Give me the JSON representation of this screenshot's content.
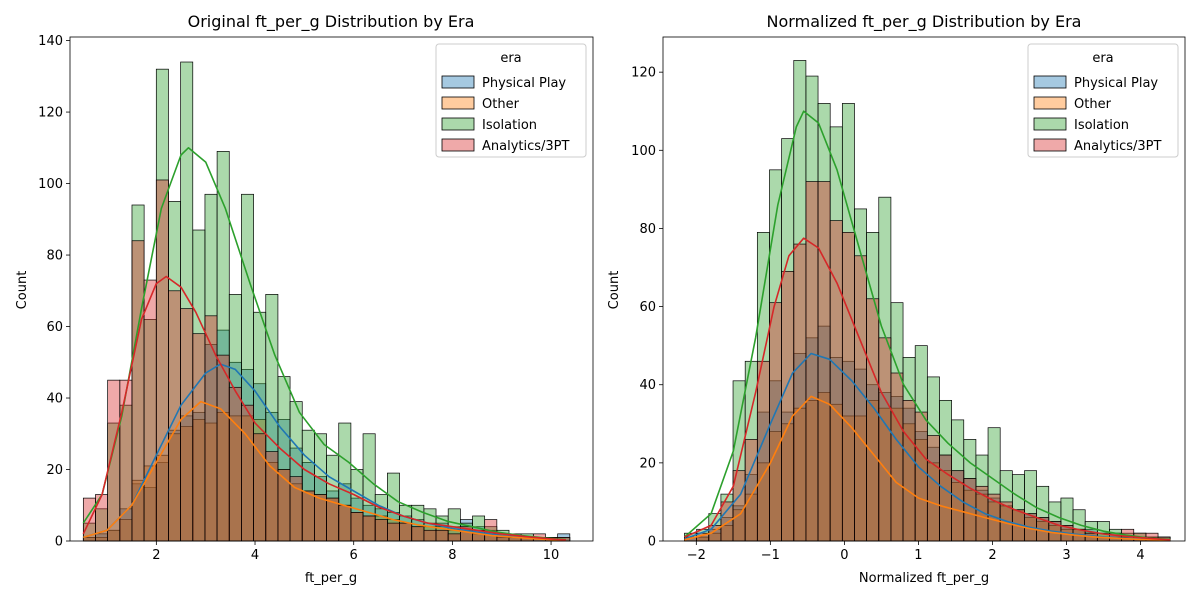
{
  "colors": {
    "Physical Play": "#1f77b4",
    "Other": "#ff7f0e",
    "Isolation": "#2ca02c",
    "Analytics/3PT": "#d62728"
  },
  "chart_data": [
    {
      "type": "histogram",
      "title": "Original ft_per_g Distribution by Era",
      "xlabel": "ft_per_g",
      "ylabel": "Count",
      "xlim": [
        0.25,
        10.85
      ],
      "ylim": [
        0,
        141
      ],
      "xticks": [
        2,
        4,
        6,
        8,
        10
      ],
      "yticks": [
        0,
        20,
        40,
        60,
        80,
        100,
        120,
        140
      ],
      "legend": {
        "title": "era",
        "placement": "top-right",
        "entries": [
          "Physical Play",
          "Other",
          "Isolation",
          "Analytics/3PT"
        ]
      },
      "bin_edges_start": 0.52,
      "bin_width": 0.2465,
      "series": [
        {
          "name": "Physical Play",
          "counts": [
            1,
            2,
            3,
            9,
            16,
            15,
            22,
            31,
            35,
            36,
            55,
            59,
            50,
            48,
            44,
            36,
            34,
            26,
            22,
            18,
            14,
            16,
            12,
            10,
            9,
            8,
            7,
            6,
            5,
            5,
            4,
            6,
            4,
            3,
            2,
            1,
            1,
            1,
            1,
            2
          ],
          "kde": [
            [
              0.52,
              1
            ],
            [
              1.0,
              3
            ],
            [
              1.5,
              10
            ],
            [
              2.0,
              24
            ],
            [
              2.5,
              38
            ],
            [
              3.0,
              47
            ],
            [
              3.3,
              49.5
            ],
            [
              3.6,
              48
            ],
            [
              4.0,
              42
            ],
            [
              4.5,
              32
            ],
            [
              5.0,
              24
            ],
            [
              5.5,
              18
            ],
            [
              6.0,
              14
            ],
            [
              6.5,
              10
            ],
            [
              7.0,
              7
            ],
            [
              7.5,
              5
            ],
            [
              8.0,
              3.5
            ],
            [
              8.5,
              2.5
            ],
            [
              9.0,
              1.5
            ],
            [
              9.5,
              1
            ],
            [
              10.0,
              0.5
            ],
            [
              10.3,
              0.3
            ]
          ]
        },
        {
          "name": "Other",
          "counts": [
            1,
            1,
            3,
            6,
            17,
            21,
            24,
            30,
            32,
            34,
            33,
            36,
            35,
            35,
            34,
            22,
            20,
            16,
            14,
            13,
            12,
            10,
            8,
            7,
            7,
            6,
            5,
            4,
            4,
            4,
            3,
            3,
            2,
            2,
            1,
            1,
            1,
            0,
            0,
            0
          ],
          "kde": [
            [
              0.52,
              1
            ],
            [
              1.0,
              3
            ],
            [
              1.5,
              10
            ],
            [
              2.0,
              22
            ],
            [
              2.5,
              34
            ],
            [
              2.9,
              39
            ],
            [
              3.3,
              37
            ],
            [
              3.8,
              30
            ],
            [
              4.3,
              21
            ],
            [
              4.8,
              15
            ],
            [
              5.3,
              12
            ],
            [
              5.8,
              10
            ],
            [
              6.3,
              8
            ],
            [
              6.8,
              6
            ],
            [
              7.3,
              4.5
            ],
            [
              7.8,
              3.5
            ],
            [
              8.3,
              2.5
            ],
            [
              8.8,
              1.5
            ],
            [
              9.3,
              1
            ],
            [
              9.8,
              0.5
            ],
            [
              10.3,
              0.2
            ]
          ]
        },
        {
          "name": "Isolation",
          "counts": [
            5,
            9,
            33,
            38,
            94,
            62,
            132,
            95,
            134,
            87,
            97,
            109,
            69,
            97,
            64,
            69,
            46,
            39,
            31,
            30,
            24,
            33,
            20,
            30,
            13,
            19,
            10,
            10,
            9,
            7,
            9,
            5,
            7,
            4,
            3,
            2,
            2,
            1,
            1,
            1
          ],
          "kde": [
            [
              0.52,
              5
            ],
            [
              0.9,
              13
            ],
            [
              1.3,
              35
            ],
            [
              1.7,
              65
            ],
            [
              2.1,
              93
            ],
            [
              2.5,
              108
            ],
            [
              2.65,
              110
            ],
            [
              3.0,
              106
            ],
            [
              3.4,
              93
            ],
            [
              3.9,
              72
            ],
            [
              4.4,
              52
            ],
            [
              4.9,
              36
            ],
            [
              5.4,
              27
            ],
            [
              5.9,
              22
            ],
            [
              6.4,
              16
            ],
            [
              6.9,
              11
            ],
            [
              7.4,
              8
            ],
            [
              7.9,
              5.5
            ],
            [
              8.4,
              4
            ],
            [
              8.9,
              2.5
            ],
            [
              9.4,
              1.5
            ],
            [
              9.9,
              0.8
            ],
            [
              10.3,
              0.4
            ]
          ]
        },
        {
          "name": "Analytics/3PT",
          "counts": [
            12,
            13,
            45,
            45,
            84,
            73,
            101,
            70,
            65,
            58,
            63,
            52,
            43,
            38,
            30,
            25,
            20,
            18,
            14,
            13,
            12,
            10,
            8,
            7,
            6,
            5,
            5,
            4,
            3,
            3,
            2,
            4,
            3,
            6,
            2,
            1,
            1,
            2,
            1,
            1
          ],
          "kde": [
            [
              0.52,
              2
            ],
            [
              0.9,
              13
            ],
            [
              1.3,
              36
            ],
            [
              1.7,
              62
            ],
            [
              2.0,
              72
            ],
            [
              2.2,
              74
            ],
            [
              2.5,
              71
            ],
            [
              2.8,
              64
            ],
            [
              3.2,
              52
            ],
            [
              3.6,
              42
            ],
            [
              4.0,
              33
            ],
            [
              4.5,
              26
            ],
            [
              5.0,
              20
            ],
            [
              5.5,
              16
            ],
            [
              6.0,
              13
            ],
            [
              6.5,
              9.5
            ],
            [
              7.0,
              7
            ],
            [
              7.5,
              5
            ],
            [
              8.0,
              4
            ],
            [
              8.5,
              3
            ],
            [
              9.0,
              2
            ],
            [
              9.5,
              1.2
            ],
            [
              10.0,
              0.6
            ],
            [
              10.3,
              0.3
            ]
          ]
        }
      ]
    },
    {
      "type": "histogram",
      "title": "Normalized ft_per_g Distribution by Era",
      "xlabel": "Normalized ft_per_g",
      "ylabel": "Count",
      "xlim": [
        -2.45,
        4.6
      ],
      "ylim": [
        0,
        129
      ],
      "xticks": [
        -2,
        -1,
        0,
        1,
        2,
        3,
        4
      ],
      "yticks": [
        0,
        20,
        40,
        60,
        80,
        100,
        120
      ],
      "legend": {
        "title": "era",
        "placement": "top-right",
        "entries": [
          "Physical Play",
          "Other",
          "Isolation",
          "Analytics/3PT"
        ]
      },
      "bin_edges_start": -2.16,
      "bin_width": 0.164,
      "series": [
        {
          "name": "Physical Play",
          "counts": [
            1,
            1,
            3,
            6,
            9,
            17,
            33,
            41,
            33,
            48,
            52,
            55,
            47,
            46,
            44,
            40,
            38,
            37,
            34,
            28,
            24,
            22,
            18,
            16,
            13,
            11,
            9,
            8,
            7,
            6,
            5,
            4,
            3,
            3,
            2,
            2,
            1,
            1,
            1,
            1
          ],
          "kde": [
            [
              -2.16,
              0.5
            ],
            [
              -1.8,
              3
            ],
            [
              -1.4,
              12
            ],
            [
              -1.0,
              30
            ],
            [
              -0.7,
              43
            ],
            [
              -0.45,
              48
            ],
            [
              -0.2,
              46.5
            ],
            [
              0.1,
              41
            ],
            [
              0.4,
              34
            ],
            [
              0.7,
              26
            ],
            [
              1.0,
              19
            ],
            [
              1.3,
              14
            ],
            [
              1.6,
              10
            ],
            [
              1.9,
              7
            ],
            [
              2.2,
              5
            ],
            [
              2.5,
              3.5
            ],
            [
              2.8,
              2.5
            ],
            [
              3.1,
              1.8
            ],
            [
              3.4,
              1.2
            ],
            [
              3.7,
              0.8
            ],
            [
              4.0,
              0.5
            ],
            [
              4.4,
              0.2
            ]
          ]
        },
        {
          "name": "Other",
          "counts": [
            0,
            1,
            2,
            4,
            8,
            12,
            20,
            28,
            30,
            34,
            36,
            38,
            35,
            32,
            32,
            36,
            34,
            34,
            30,
            26,
            20,
            18,
            15,
            13,
            12,
            10,
            9,
            8,
            6,
            5,
            4,
            3,
            3,
            2,
            2,
            1,
            1,
            1,
            0,
            0
          ],
          "kde": [
            [
              -2.16,
              0.3
            ],
            [
              -1.8,
              2
            ],
            [
              -1.4,
              7
            ],
            [
              -1.0,
              20
            ],
            [
              -0.7,
              32
            ],
            [
              -0.45,
              37
            ],
            [
              -0.2,
              35
            ],
            [
              0.1,
              29
            ],
            [
              0.4,
              22
            ],
            [
              0.7,
              15
            ],
            [
              1.0,
              11
            ],
            [
              1.3,
              9
            ],
            [
              1.6,
              7.5
            ],
            [
              1.9,
              6
            ],
            [
              2.2,
              4.5
            ],
            [
              2.5,
              3.2
            ],
            [
              2.8,
              2.2
            ],
            [
              3.1,
              1.5
            ],
            [
              3.4,
              1
            ],
            [
              3.7,
              0.7
            ],
            [
              4.0,
              0.4
            ],
            [
              4.4,
              0.2
            ]
          ]
        },
        {
          "name": "Isolation",
          "counts": [
            2,
            3,
            7,
            12,
            41,
            46,
            79,
            95,
            103,
            123,
            119,
            112,
            106,
            112,
            85,
            79,
            88,
            61,
            47,
            50,
            42,
            36,
            31,
            26,
            22,
            29,
            18,
            17,
            18,
            14,
            10,
            11,
            8,
            5,
            5,
            3,
            2,
            2,
            1,
            1
          ],
          "kde": [
            [
              -2.16,
              1
            ],
            [
              -1.8,
              7
            ],
            [
              -1.5,
              23
            ],
            [
              -1.2,
              52
            ],
            [
              -0.9,
              86
            ],
            [
              -0.65,
              106
            ],
            [
              -0.55,
              110
            ],
            [
              -0.35,
              107
            ],
            [
              -0.1,
              95
            ],
            [
              0.2,
              75
            ],
            [
              0.5,
              55
            ],
            [
              0.8,
              40
            ],
            [
              1.1,
              31
            ],
            [
              1.4,
              25
            ],
            [
              1.7,
              20
            ],
            [
              2.0,
              16
            ],
            [
              2.3,
              12
            ],
            [
              2.6,
              8.5
            ],
            [
              2.9,
              6
            ],
            [
              3.2,
              4
            ],
            [
              3.5,
              2.5
            ],
            [
              3.8,
              1.5
            ],
            [
              4.1,
              0.8
            ],
            [
              4.4,
              0.4
            ]
          ]
        },
        {
          "name": "Analytics/3PT",
          "counts": [
            1,
            2,
            4,
            10,
            18,
            26,
            46,
            61,
            69,
            76,
            92,
            92,
            82,
            79,
            73,
            62,
            52,
            43,
            36,
            33,
            27,
            22,
            18,
            16,
            14,
            12,
            10,
            8,
            7,
            6,
            5,
            4,
            3,
            2,
            1,
            2,
            3,
            2,
            2,
            1
          ],
          "kde": [
            [
              -2.16,
              1
            ],
            [
              -1.8,
              4
            ],
            [
              -1.5,
              14
            ],
            [
              -1.2,
              38
            ],
            [
              -0.95,
              60
            ],
            [
              -0.75,
              73
            ],
            [
              -0.55,
              77.5
            ],
            [
              -0.35,
              75
            ],
            [
              -0.1,
              66
            ],
            [
              0.2,
              52
            ],
            [
              0.5,
              38
            ],
            [
              0.8,
              28
            ],
            [
              1.1,
              21
            ],
            [
              1.4,
              17
            ],
            [
              1.7,
              13.5
            ],
            [
              2.0,
              10.5
            ],
            [
              2.3,
              8
            ],
            [
              2.6,
              6
            ],
            [
              2.9,
              4
            ],
            [
              3.2,
              2.8
            ],
            [
              3.5,
              1.8
            ],
            [
              3.8,
              1.2
            ],
            [
              4.1,
              0.7
            ],
            [
              4.4,
              0.3
            ]
          ]
        }
      ]
    }
  ]
}
